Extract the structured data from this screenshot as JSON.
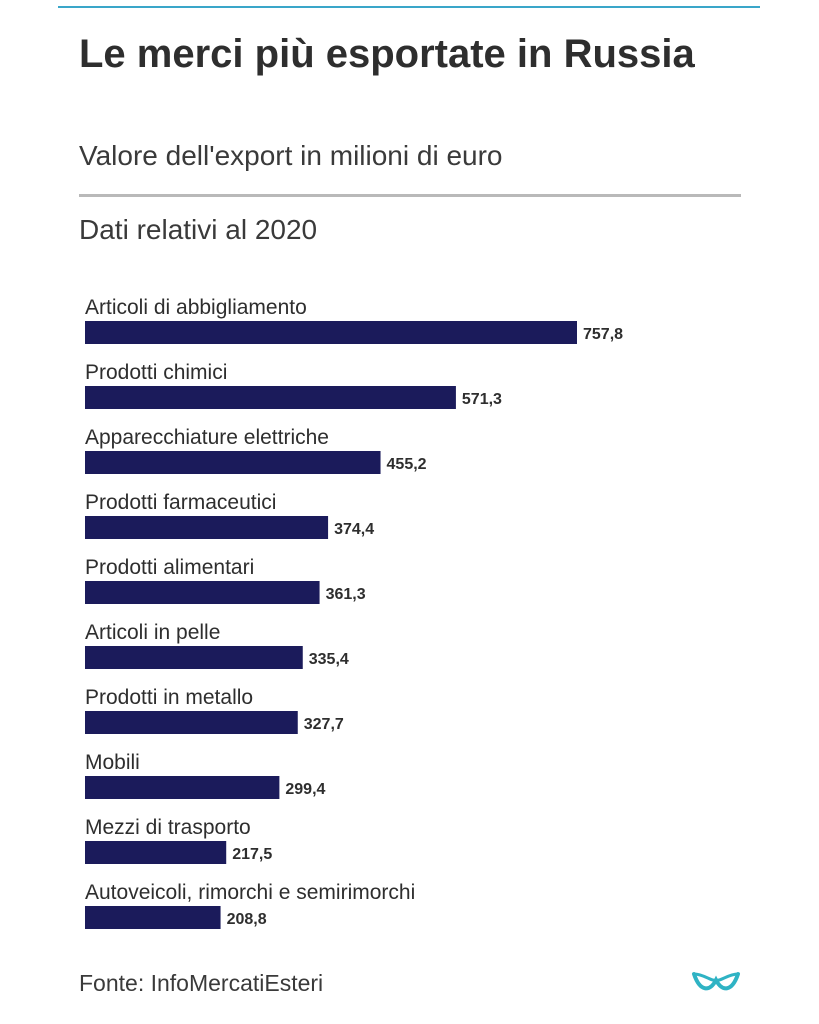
{
  "header": {
    "title": "Le merci più esportate in Russia",
    "subtitle": "Valore dell'export in milioni di euro",
    "note": "Dati relativi al 2020"
  },
  "footer": {
    "source": "Fonte: InfoMercatiEsteri"
  },
  "colors": {
    "bar": "#1b1b5b",
    "accent": "#3aa6c9"
  },
  "chart_data": {
    "type": "bar",
    "orientation": "horizontal",
    "categories": [
      "Articoli di abbigliamento",
      "Prodotti chimici",
      "Apparecchiature elettriche",
      "Prodotti farmaceutici",
      "Prodotti alimentari",
      "Articoli in pelle",
      "Prodotti in metallo",
      "Mobili",
      "Mezzi di trasporto",
      "Autoveicoli, rimorchi e semirimorchi"
    ],
    "values": [
      757.8,
      571.3,
      455.2,
      374.4,
      361.3,
      335.4,
      327.7,
      299.4,
      217.5,
      208.8
    ],
    "value_labels": [
      "757,8",
      "571,3",
      "455,2",
      "374,4",
      "361,3",
      "335,4",
      "327,7",
      "299,4",
      "217,5",
      "208,8"
    ],
    "grid": false,
    "legend": "none"
  }
}
